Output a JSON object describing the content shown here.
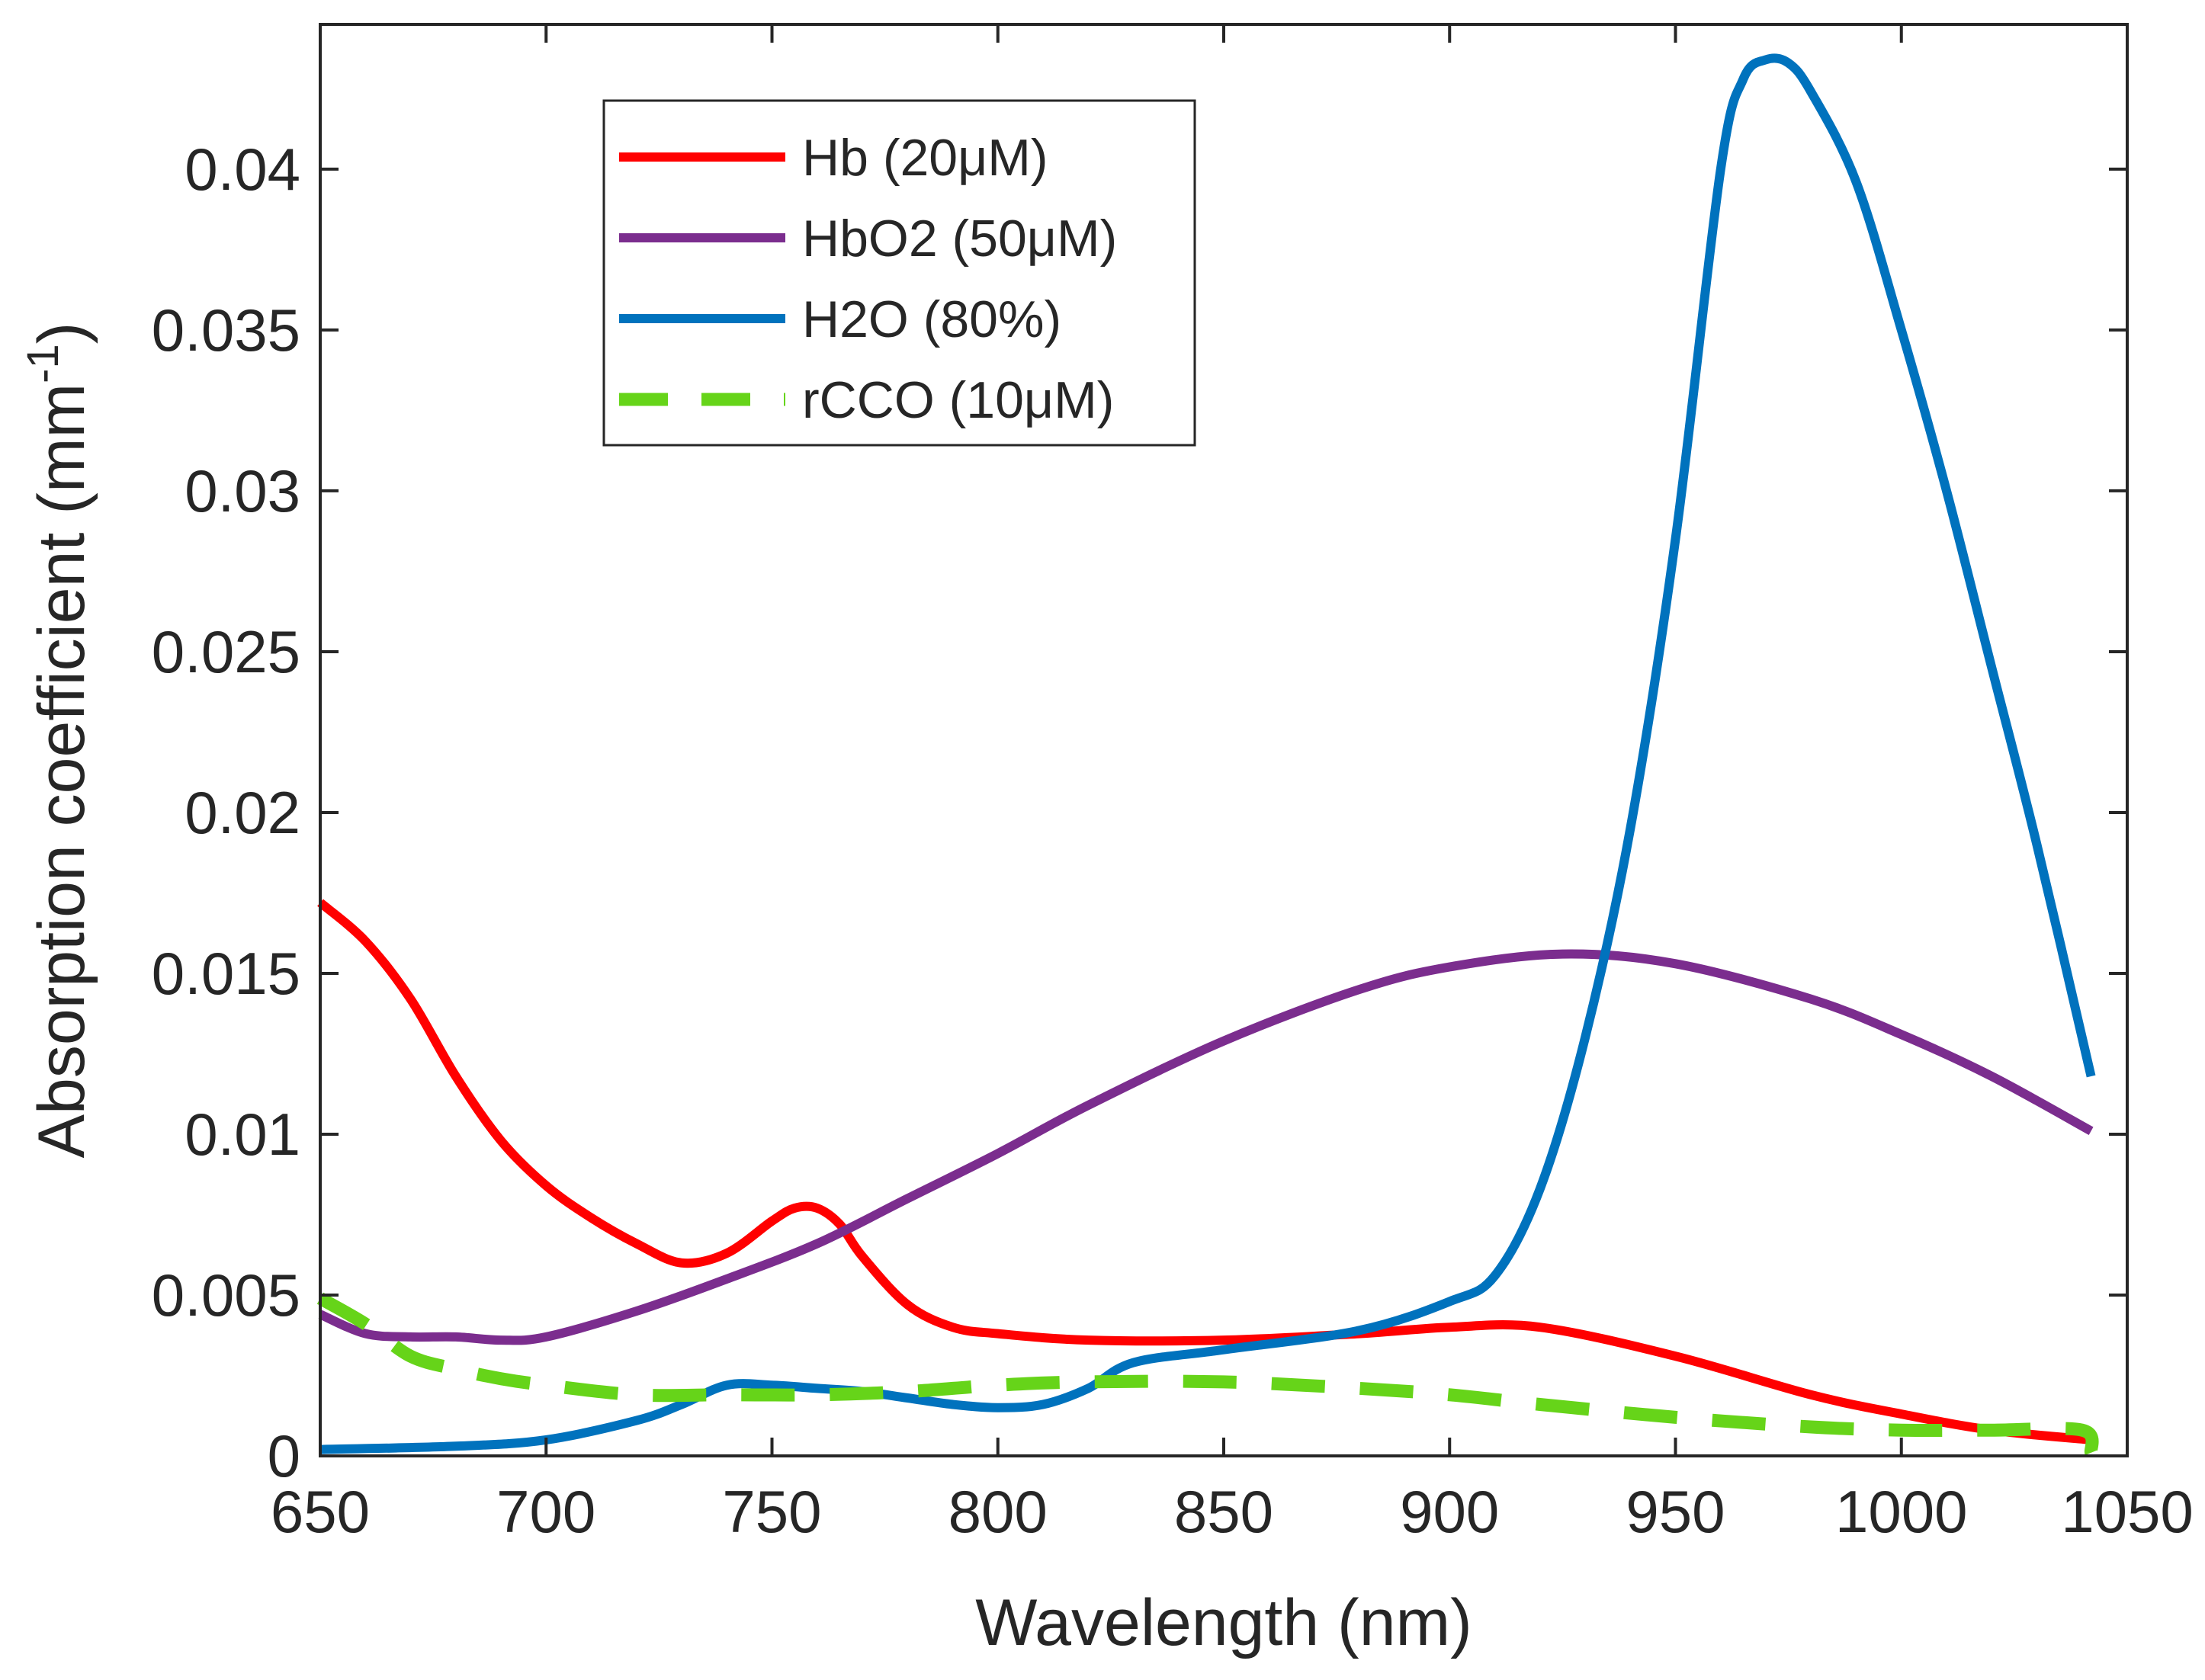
{
  "chart_data": {
    "type": "line",
    "xlabel": "Wavelength (nm)",
    "ylabel": "Absorption coefficient (mm",
    "ylabel_sup": "-1",
    "ylabel_close": ")",
    "xlim": [
      650,
      1050
    ],
    "ylim": [
      0,
      0.0445
    ],
    "x_ticks": [
      650,
      700,
      750,
      800,
      850,
      900,
      950,
      1000,
      1050
    ],
    "x_tick_labels": [
      "650",
      "700",
      "750",
      "800",
      "850",
      "900",
      "950",
      "1000",
      "1050"
    ],
    "y_ticks": [
      0,
      0.005,
      0.01,
      0.015,
      0.02,
      0.025,
      0.03,
      0.035,
      0.04
    ],
    "y_tick_labels": [
      "0",
      "0.005",
      "0.01",
      "0.015",
      "0.02",
      "0.025",
      "0.03",
      "0.035",
      "0.04"
    ],
    "grid": false,
    "legend_position": "top-left",
    "series": [
      {
        "name": "Hb (20μM)",
        "color": "#ff0000",
        "style": "solid",
        "x": [
          650,
          660,
          670,
          680,
          690,
          700,
          710,
          720,
          730,
          740,
          750,
          755,
          760,
          765,
          770,
          780,
          790,
          800,
          820,
          850,
          880,
          900,
          920,
          950,
          980,
          1000,
          1020,
          1042
        ],
        "y": [
          0.0172,
          0.016,
          0.0142,
          0.0118,
          0.0098,
          0.0084,
          0.0074,
          0.0066,
          0.006,
          0.0063,
          0.0073,
          0.0077,
          0.0077,
          0.0072,
          0.0062,
          0.0047,
          0.004,
          0.0038,
          0.0036,
          0.0036,
          0.0038,
          0.004,
          0.004,
          0.0031,
          0.0019,
          0.0013,
          0.0008,
          0.0005
        ]
      },
      {
        "name": "HbO2 (50μM)",
        "color": "#7b2d8e",
        "style": "solid",
        "x": [
          650,
          660,
          670,
          680,
          690,
          700,
          720,
          740,
          760,
          780,
          800,
          820,
          850,
          880,
          900,
          925,
          950,
          980,
          1000,
          1020,
          1042
        ],
        "y": [
          0.0044,
          0.0038,
          0.0037,
          0.0037,
          0.0036,
          0.0037,
          0.0045,
          0.0055,
          0.0066,
          0.008,
          0.0094,
          0.0109,
          0.0129,
          0.0145,
          0.0152,
          0.0156,
          0.0153,
          0.0142,
          0.0131,
          0.0118,
          0.0101
        ]
      },
      {
        "name": "H2O (80%)",
        "color": "#0072bd",
        "style": "solid",
        "x": [
          650,
          680,
          700,
          720,
          730,
          740,
          750,
          760,
          770,
          780,
          790,
          800,
          810,
          820,
          830,
          850,
          880,
          900,
          910,
          920,
          930,
          940,
          950,
          960,
          965,
          970,
          975,
          980,
          990,
          1000,
          1010,
          1020,
          1030,
          1042
        ],
        "y": [
          0.0002,
          0.0003,
          0.0005,
          0.0011,
          0.0016,
          0.0022,
          0.0022,
          0.0021,
          0.002,
          0.0018,
          0.0016,
          0.0015,
          0.0016,
          0.0021,
          0.0029,
          0.0033,
          0.0039,
          0.0048,
          0.0056,
          0.0083,
          0.013,
          0.0195,
          0.0285,
          0.04,
          0.0428,
          0.0434,
          0.0433,
          0.0424,
          0.0396,
          0.035,
          0.03,
          0.0245,
          0.019,
          0.0118
        ]
      },
      {
        "name": "rCCO (10μM)",
        "color": "#66d419",
        "style": "dashed",
        "x": [
          650,
          660,
          670,
          680,
          690,
          700,
          720,
          740,
          760,
          780,
          800,
          820,
          850,
          880,
          900,
          920,
          950,
          980,
          1000,
          1020,
          1040,
          1042
        ],
        "y": [
          0.0049,
          0.0041,
          0.0031,
          0.0027,
          0.0024,
          0.0022,
          0.0019,
          0.0019,
          0.0019,
          0.002,
          0.0022,
          0.0023,
          0.0023,
          0.0021,
          0.0019,
          0.0016,
          0.0012,
          0.0009,
          0.0008,
          0.0008,
          0.0008,
          0.0001
        ]
      }
    ]
  }
}
